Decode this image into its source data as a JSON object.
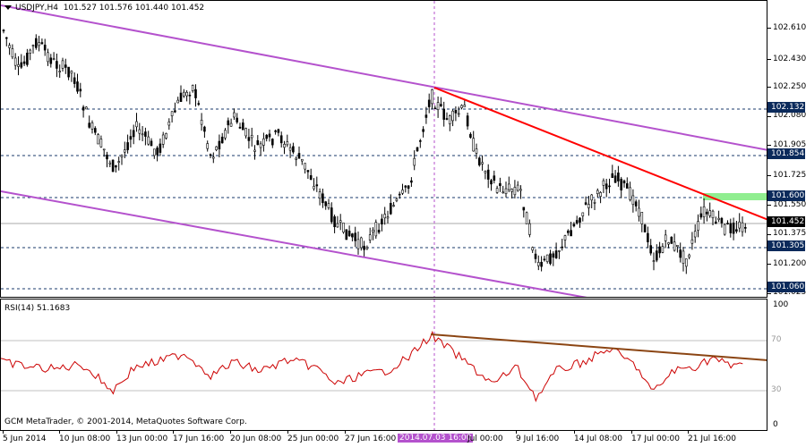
{
  "header": {
    "symbol": "USDJPY,H4",
    "ohlc": "101.527 101.576 101.440 101.452"
  },
  "price_axis": {
    "ticks": [
      "102.610",
      "102.430",
      "102.250",
      "102.080",
      "101.905",
      "101.725",
      "101.550",
      "101.375",
      "101.200",
      "101.025"
    ],
    "level_tags": [
      "102.132",
      "101.854",
      "101.600",
      "101.305",
      "101.060"
    ],
    "current_price": "101.452"
  },
  "rsi": {
    "label": "RSI(14) 51.1683",
    "max": "100",
    "upper": "70",
    "lower": "30",
    "min": "0"
  },
  "copyright": "GCM MetaTrader, © 2001-2014, MetaQuotes Software Corp.",
  "time_axis": {
    "labels": [
      "5 Jun 2014",
      "10 Jun 08:00",
      "13 Jun 00:00",
      "17 Jun 16:00",
      "20 Jun 08:00",
      "25 Jun 00:00",
      "27 Jun 16:00",
      "2014.07.03 16:00",
      "Jul 00:00",
      "9 Jul 16:00",
      "14 Jul 08:00",
      "17 Jul 00:00",
      "21 Jul 16:00"
    ]
  },
  "colors": {
    "channel": "#b452cd",
    "trendline_red": "#ff0000",
    "rsi_line": "#cc0000",
    "rsi_trend": "#8b4513",
    "zone_green": "#90ee90",
    "level_line": "#1a3a6b",
    "candle": "#000000"
  },
  "icons": {
    "menu": "dropdown-triangle-icon"
  }
}
